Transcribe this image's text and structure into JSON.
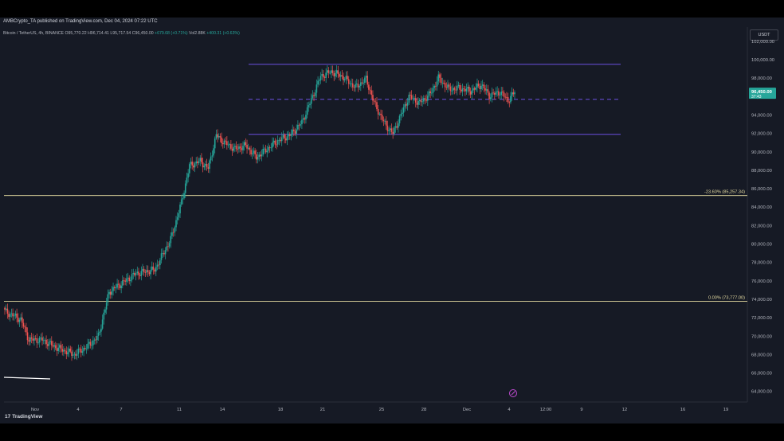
{
  "header": {
    "published": "AMBCrypto_TA published on TradingView.com, Dec 04, 2024 07:22 UTC"
  },
  "ohlc": {
    "symbol": "Bitcoin / TetherUS, 4h, BINANCE",
    "open": "O95,770.22",
    "high": "H96,714.41",
    "low": "L95,717.54",
    "close": "C96,450.00",
    "change": "+679.68 (+0.71%)",
    "vol": "Vol2.88K",
    "extra": "+400.31 (+0.63%)"
  },
  "currency": "USDT",
  "price_tag": {
    "price": "96,450.00",
    "timer": "37:43"
  },
  "branding": "TradingView",
  "colors": {
    "up": "#26a69a",
    "down": "#ef5350",
    "range": "#6b4fe0",
    "fib": "#e6dca2",
    "background": "#161a25"
  },
  "chart_data": {
    "type": "candlestick",
    "y_ticks": [
      "102,000.00",
      "100,000.00",
      "98,000.00",
      "96,000.00",
      "94,000.00",
      "92,000.00",
      "90,000.00",
      "88,000.00",
      "86,000.00",
      "84,000.00",
      "82,000.00",
      "80,000.00",
      "78,000.00",
      "76,000.00",
      "74,000.00",
      "72,000.00",
      "70,000.00",
      "68,000.00",
      "66,000.00",
      "64,000.00"
    ],
    "ylim": [
      63500,
      102500
    ],
    "x_ticks": [
      "Nov",
      "4",
      "7",
      "11",
      "14",
      "18",
      "21",
      "25",
      "28",
      "Dec",
      "4",
      "12:00",
      "9",
      "12",
      "16",
      "19"
    ],
    "hlines": [
      {
        "label": "-23.60% (85,257.34)",
        "value": 85257.34,
        "color": "#e6dca2"
      },
      {
        "label": "0.00% (73,777.00)",
        "value": 73777.0,
        "color": "#e6dca2"
      }
    ],
    "range_lines": [
      {
        "value": 99500,
        "style": "solid"
      },
      {
        "value": 95700,
        "style": "dashed"
      },
      {
        "value": 91900,
        "style": "solid"
      }
    ],
    "anchors": [
      [
        0,
        72700
      ],
      [
        12,
        71800
      ],
      [
        18,
        69600
      ],
      [
        28,
        69600
      ],
      [
        38,
        68800
      ],
      [
        52,
        68000
      ],
      [
        62,
        68900
      ],
      [
        70,
        70000
      ],
      [
        78,
        74800
      ],
      [
        88,
        75800
      ],
      [
        98,
        76800
      ],
      [
        112,
        77200
      ],
      [
        124,
        80500
      ],
      [
        132,
        84500
      ],
      [
        138,
        88500
      ],
      [
        146,
        89000
      ],
      [
        152,
        88200
      ],
      [
        158,
        91800
      ],
      [
        164,
        91000
      ],
      [
        172,
        90300
      ],
      [
        180,
        90700
      ],
      [
        188,
        89400
      ],
      [
        196,
        90300
      ],
      [
        204,
        91200
      ],
      [
        214,
        91900
      ],
      [
        222,
        93200
      ],
      [
        230,
        96000
      ],
      [
        236,
        98200
      ],
      [
        244,
        98700
      ],
      [
        252,
        98200
      ],
      [
        262,
        97000
      ],
      [
        270,
        97900
      ],
      [
        276,
        95300
      ],
      [
        284,
        93000
      ],
      [
        290,
        92000
      ],
      [
        296,
        94000
      ],
      [
        302,
        96000
      ],
      [
        310,
        95300
      ],
      [
        318,
        96300
      ],
      [
        324,
        98000
      ],
      [
        332,
        96800
      ],
      [
        340,
        96900
      ],
      [
        348,
        96600
      ],
      [
        356,
        97300
      ],
      [
        362,
        96100
      ],
      [
        370,
        96500
      ],
      [
        376,
        95600
      ],
      [
        381,
        96450
      ]
    ]
  }
}
